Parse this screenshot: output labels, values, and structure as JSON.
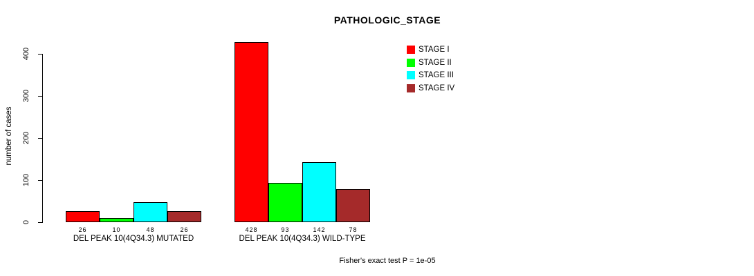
{
  "chart_data": {
    "type": "bar",
    "title": "PATHOLOGIC_STAGE",
    "ylabel": "number of cases",
    "xlabel": "",
    "ylim": [
      0,
      400
    ],
    "yticks": [
      0,
      100,
      200,
      300,
      400
    ],
    "grid": false,
    "legend_position": "top-right",
    "categories": [
      "DEL PEAK 10(4Q34.3) MUTATED",
      "DEL PEAK 10(4Q34.3) WILD-TYPE"
    ],
    "series": [
      {
        "name": "STAGE I",
        "color": "#ff0000",
        "values": [
          26,
          428
        ]
      },
      {
        "name": "STAGE II",
        "color": "#00ff00",
        "values": [
          10,
          93
        ]
      },
      {
        "name": "STAGE III",
        "color": "#00ffff",
        "values": [
          48,
          142
        ]
      },
      {
        "name": "STAGE IV",
        "color": "#a52a2a",
        "values": [
          26,
          78
        ]
      }
    ],
    "bar_value_labels_shown": true,
    "footnote": "Fisher's exact test P = 1e-05"
  }
}
